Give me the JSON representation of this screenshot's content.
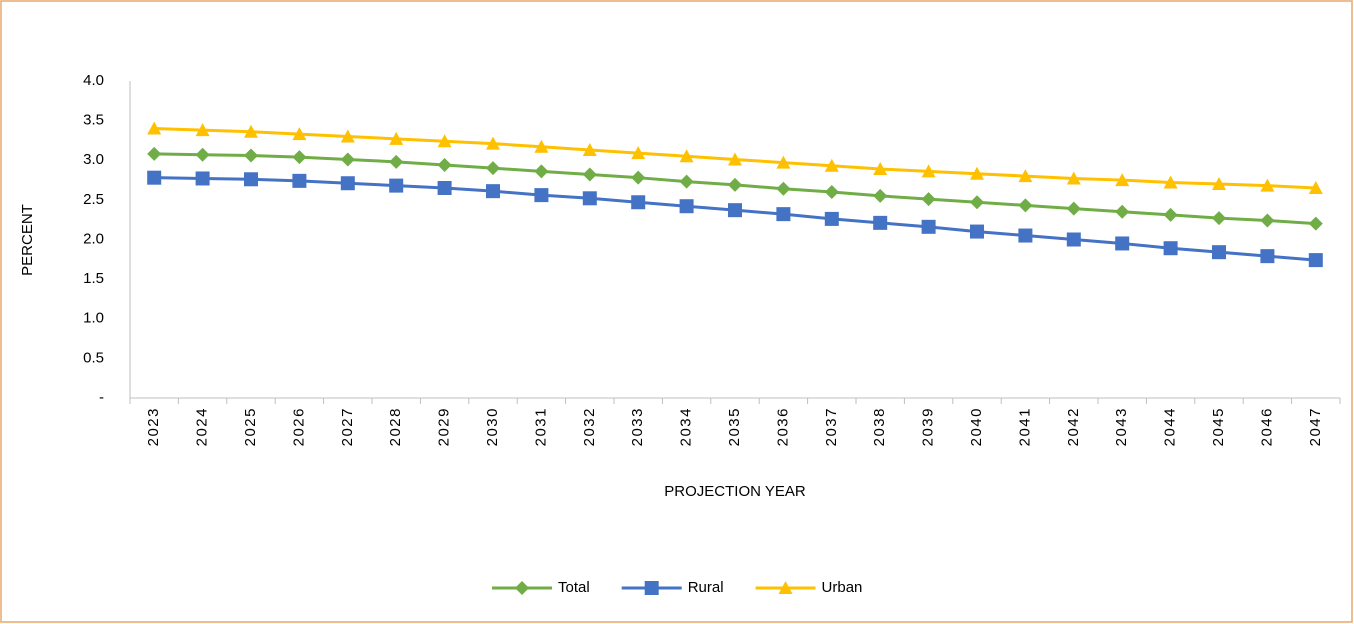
{
  "chart_data": {
    "type": "line",
    "y_label": "PERCENT",
    "x_label": "PROJECTION YEAR",
    "categories": [
      "2023",
      "2024",
      "2025",
      "2026",
      "2027",
      "2028",
      "2029",
      "2030",
      "2031",
      "2032",
      "2033",
      "2034",
      "2035",
      "2036",
      "2037",
      "2038",
      "2039",
      "2040",
      "2041",
      "2042",
      "2043",
      "2044",
      "2045",
      "2046",
      "2047"
    ],
    "series": [
      {
        "name": "Total",
        "color": "#70ad47",
        "marker": "diamond",
        "values": [
          3.08,
          3.07,
          3.06,
          3.04,
          3.01,
          2.98,
          2.94,
          2.9,
          2.86,
          2.82,
          2.78,
          2.73,
          2.69,
          2.64,
          2.6,
          2.55,
          2.51,
          2.47,
          2.43,
          2.39,
          2.35,
          2.31,
          2.27,
          2.24,
          2.2
        ]
      },
      {
        "name": "Rural",
        "color": "#4472c4",
        "marker": "square",
        "values": [
          2.78,
          2.77,
          2.76,
          2.74,
          2.71,
          2.68,
          2.65,
          2.61,
          2.56,
          2.52,
          2.47,
          2.42,
          2.37,
          2.32,
          2.26,
          2.21,
          2.16,
          2.1,
          2.05,
          2.0,
          1.95,
          1.89,
          1.84,
          1.79,
          1.74
        ]
      },
      {
        "name": "Urban",
        "color": "#ffc000",
        "marker": "triangle",
        "values": [
          3.4,
          3.38,
          3.36,
          3.33,
          3.3,
          3.27,
          3.24,
          3.21,
          3.17,
          3.13,
          3.09,
          3.05,
          3.01,
          2.97,
          2.93,
          2.89,
          2.86,
          2.83,
          2.8,
          2.77,
          2.75,
          2.72,
          2.7,
          2.68,
          2.65
        ]
      }
    ],
    "ylim": [
      0,
      4
    ],
    "yticks": [
      {
        "value": 0,
        "label": "-"
      },
      0.5,
      {
        "value": 1,
        "label": "1.0"
      },
      1.5,
      {
        "value": 2,
        "label": "2.0"
      },
      2.5,
      {
        "value": 3,
        "label": "3.0"
      },
      3.5,
      {
        "value": 4,
        "label": "4.0"
      }
    ],
    "grid": false,
    "legend": "bottom"
  }
}
